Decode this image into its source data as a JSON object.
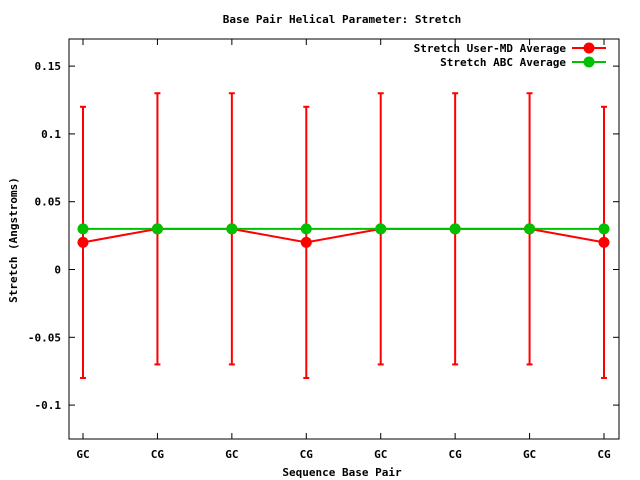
{
  "chart_data": {
    "type": "line",
    "title": "Base Pair Helical Parameter: Stretch",
    "xlabel": "Sequence Base Pair",
    "ylabel": "Stretch (Angstroms)",
    "categories": [
      "GC",
      "CG",
      "GC",
      "CG",
      "GC",
      "CG",
      "GC",
      "CG"
    ],
    "ylim": [
      -0.125,
      0.17
    ],
    "yticks": [
      -0.1,
      -0.05,
      0,
      0.05,
      0.1,
      0.15
    ],
    "ytick_labels": [
      "-0.1",
      "-0.05",
      "0",
      "0.05",
      "0.1",
      "0.15"
    ],
    "legend_position": "top-right",
    "grid": false,
    "series": [
      {
        "name": "Stretch User-MD Average",
        "color": "#ff0000",
        "values": [
          0.02,
          0.03,
          0.03,
          0.02,
          0.03,
          0.03,
          0.03,
          0.02
        ],
        "error_low": [
          -0.08,
          -0.07,
          -0.07,
          -0.08,
          -0.07,
          -0.07,
          -0.07,
          -0.08
        ],
        "error_high": [
          0.12,
          0.13,
          0.13,
          0.12,
          0.13,
          0.13,
          0.13,
          0.12
        ]
      },
      {
        "name": "Stretch ABC Average",
        "color": "#00c000",
        "values": [
          0.03,
          0.03,
          0.03,
          0.03,
          0.03,
          0.03,
          0.03,
          0.03
        ]
      }
    ]
  }
}
